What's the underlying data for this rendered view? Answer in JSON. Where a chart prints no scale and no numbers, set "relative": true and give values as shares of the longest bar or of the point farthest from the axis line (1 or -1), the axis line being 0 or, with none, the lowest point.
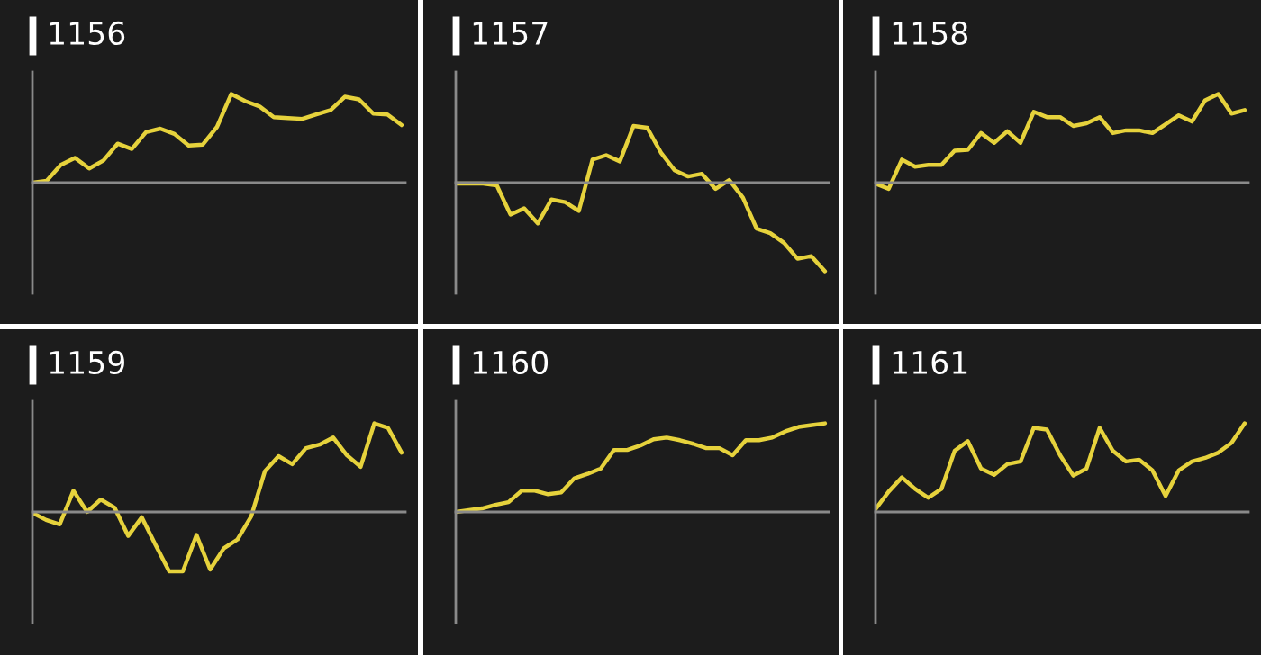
{
  "chart_data": [
    {
      "type": "line",
      "title": "1156",
      "relative": true,
      "categories": [
        null,
        null,
        null,
        null,
        null,
        null,
        null,
        null,
        null,
        null,
        null,
        null,
        null,
        null,
        null,
        null,
        null,
        null,
        null,
        null,
        null,
        null,
        null,
        null,
        null,
        null,
        null
      ],
      "series": [
        {
          "color": "#e6d23c",
          "values": [
            0,
            0.02,
            0.2,
            0.28,
            0.16,
            0.25,
            0.44,
            0.38,
            0.57,
            0.61,
            0.55,
            0.42,
            0.43,
            0.63,
            1,
            0.92,
            0.86,
            0.74,
            0.73,
            0.72,
            0.77,
            0.82,
            0.97,
            0.94,
            0.78,
            0.77,
            0.65
          ]
        }
      ]
    },
    {
      "type": "line",
      "title": "1157",
      "relative": true,
      "categories": [
        null,
        null,
        null,
        null,
        null,
        null,
        null,
        null,
        null,
        null,
        null,
        null,
        null,
        null,
        null,
        null,
        null,
        null,
        null,
        null,
        null,
        null,
        null,
        null,
        null,
        null,
        null,
        null
      ],
      "series": [
        {
          "color": "#e6d23c",
          "values": [
            -0.01,
            -0.01,
            -0.01,
            -0.03,
            -0.36,
            -0.29,
            -0.46,
            -0.19,
            -0.22,
            -0.32,
            0.26,
            0.31,
            0.24,
            0.64,
            0.62,
            0.34,
            0.14,
            0.07,
            0.1,
            -0.07,
            0.03,
            -0.17,
            -0.52,
            -0.57,
            -0.68,
            -0.86,
            -0.83,
            -1
          ]
        }
      ]
    },
    {
      "type": "line",
      "title": "1158",
      "relative": true,
      "categories": [
        null,
        null,
        null,
        null,
        null,
        null,
        null,
        null,
        null,
        null,
        null,
        null,
        null,
        null,
        null,
        null,
        null,
        null,
        null,
        null,
        null,
        null,
        null,
        null,
        null,
        null,
        null,
        null,
        null
      ],
      "series": [
        {
          "color": "#e6d23c",
          "values": [
            -0.01,
            -0.07,
            0.26,
            0.18,
            0.2,
            0.2,
            0.36,
            0.37,
            0.56,
            0.45,
            0.58,
            0.45,
            0.8,
            0.74,
            0.74,
            0.64,
            0.67,
            0.74,
            0.56,
            0.59,
            0.59,
            0.56,
            0.66,
            0.76,
            0.69,
            0.93,
            1,
            0.78,
            0.82
          ]
        }
      ]
    },
    {
      "type": "line",
      "title": "1159",
      "relative": true,
      "categories": [
        null,
        null,
        null,
        null,
        null,
        null,
        null,
        null,
        null,
        null,
        null,
        null,
        null,
        null,
        null,
        null,
        null,
        null,
        null,
        null,
        null,
        null,
        null,
        null,
        null,
        null,
        null,
        null
      ],
      "series": [
        {
          "color": "#e6d23c",
          "values": [
            -0.01,
            -0.09,
            -0.14,
            0.24,
            0,
            0.14,
            0.05,
            -0.27,
            -0.06,
            -0.37,
            -0.67,
            -0.67,
            -0.26,
            -0.65,
            -0.41,
            -0.31,
            -0.05,
            0.46,
            0.63,
            0.54,
            0.72,
            0.76,
            0.84,
            0.64,
            0.51,
            1,
            0.95,
            0.67
          ]
        }
      ]
    },
    {
      "type": "line",
      "title": "1160",
      "relative": true,
      "categories": [
        null,
        null,
        null,
        null,
        null,
        null,
        null,
        null,
        null,
        null,
        null,
        null,
        null,
        null,
        null,
        null,
        null,
        null,
        null,
        null,
        null,
        null,
        null,
        null,
        null,
        null,
        null,
        null,
        null
      ],
      "series": [
        {
          "color": "#e6d23c",
          "values": [
            0,
            0.02,
            0.04,
            0.08,
            0.11,
            0.24,
            0.24,
            0.2,
            0.22,
            0.38,
            0.43,
            0.49,
            0.7,
            0.7,
            0.75,
            0.82,
            0.84,
            0.81,
            0.77,
            0.72,
            0.72,
            0.64,
            0.81,
            0.81,
            0.84,
            0.91,
            0.96,
            0.98,
            1
          ]
        }
      ]
    },
    {
      "type": "line",
      "title": "1161",
      "relative": true,
      "categories": [
        null,
        null,
        null,
        null,
        null,
        null,
        null,
        null,
        null,
        null,
        null,
        null,
        null,
        null,
        null,
        null,
        null,
        null,
        null,
        null,
        null,
        null,
        null,
        null,
        null,
        null,
        null,
        null,
        null
      ],
      "series": [
        {
          "color": "#e6d23c",
          "values": [
            0.03,
            0.23,
            0.39,
            0.26,
            0.16,
            0.26,
            0.69,
            0.8,
            0.49,
            0.42,
            0.54,
            0.57,
            0.95,
            0.93,
            0.64,
            0.41,
            0.49,
            0.95,
            0.69,
            0.57,
            0.59,
            0.47,
            0.18,
            0.47,
            0.57,
            0.61,
            0.67,
            0.78,
            1
          ]
        }
      ]
    }
  ]
}
